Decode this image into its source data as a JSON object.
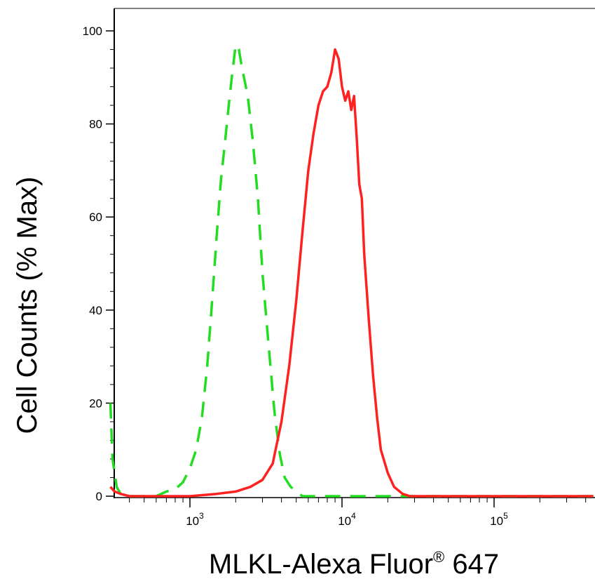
{
  "chart_data": {
    "type": "line",
    "title": "",
    "xlabel": "MLKL-Alexa Fluor",
    "xlabel_super": "®",
    "xlabel_suffix": " 647",
    "ylabel": "Cell Counts (% Max)",
    "x_scale": "log",
    "xlim": [
      300,
      450000
    ],
    "ylim": [
      0,
      100
    ],
    "y_ticks": [
      0,
      20,
      40,
      60,
      80,
      100
    ],
    "x_ticks": [
      {
        "value": 1000,
        "base": "10",
        "exp": "3"
      },
      {
        "value": 10000,
        "base": "10",
        "exp": "4"
      },
      {
        "value": 100000,
        "base": "10",
        "exp": "5"
      }
    ],
    "grid": false,
    "legend": "none",
    "series": [
      {
        "style": "dashed",
        "color": "#22dd22",
        "x": [
          300,
          310,
          330,
          350,
          380,
          420,
          500,
          600,
          700,
          800,
          900,
          1000,
          1100,
          1200,
          1300,
          1400,
          1500,
          1600,
          1700,
          1800,
          1900,
          2000,
          2100,
          2200,
          2300,
          2400,
          2600,
          2800,
          3000,
          3300,
          3600,
          3900,
          4200,
          4600,
          5000,
          5500,
          6000,
          7000,
          10000,
          20000,
          50000,
          450000
        ],
        "y": [
          20,
          8,
          2,
          0.5,
          0,
          0,
          0,
          0,
          1,
          1.5,
          3,
          6,
          10,
          17,
          28,
          42,
          56,
          68,
          76,
          84,
          91,
          97,
          96,
          92,
          89,
          86,
          76,
          64,
          48,
          32,
          18,
          9,
          4,
          2,
          1,
          0,
          0,
          0,
          0,
          0,
          0,
          0
        ]
      },
      {
        "style": "solid",
        "color": "#ff2020",
        "x": [
          300,
          320,
          350,
          400,
          500,
          1000,
          1500,
          2000,
          2500,
          3000,
          3500,
          4000,
          4500,
          5000,
          5500,
          6000,
          6500,
          7000,
          7500,
          8000,
          8500,
          9000,
          9500,
          10000,
          10500,
          11000,
          11500,
          12000,
          12500,
          13000,
          13500,
          14000,
          15000,
          16000,
          17000,
          18000,
          20000,
          22000,
          25000,
          28000,
          32000,
          40000,
          100000,
          450000
        ],
        "y": [
          2,
          1,
          0.5,
          0,
          0,
          0,
          0.5,
          1,
          2,
          3.5,
          7,
          16,
          28,
          42,
          57,
          70,
          78,
          84,
          87,
          88,
          91,
          96,
          94,
          88,
          85,
          87,
          83,
          86,
          77,
          67,
          64,
          52,
          38,
          26,
          17,
          10,
          5,
          2,
          0.5,
          0,
          0,
          0,
          0,
          0
        ]
      }
    ]
  }
}
